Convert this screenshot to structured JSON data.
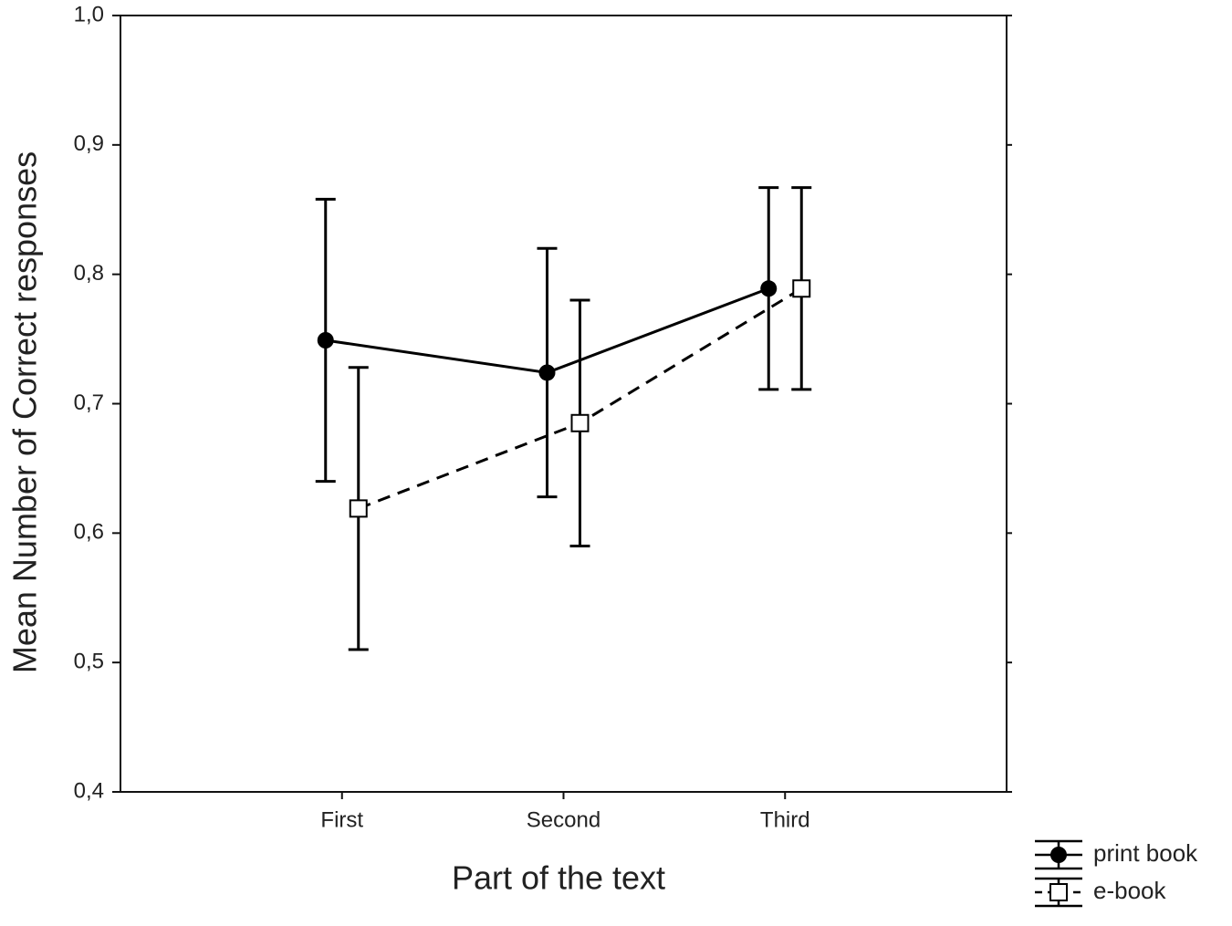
{
  "chart_data": {
    "type": "line",
    "xlabel": "Part of the text",
    "ylabel": "Mean Number of Correct responses",
    "categories": [
      "First",
      "Second",
      "Third"
    ],
    "ylim": [
      0.4,
      1.0
    ],
    "yticks": [
      {
        "value": 0.4,
        "label": "0,4"
      },
      {
        "value": 0.5,
        "label": "0,5"
      },
      {
        "value": 0.6,
        "label": "0,6"
      },
      {
        "value": 0.7,
        "label": "0,7"
      },
      {
        "value": 0.8,
        "label": "0,8"
      },
      {
        "value": 0.9,
        "label": "0,9"
      },
      {
        "value": 1.0,
        "label": "1,0"
      }
    ],
    "legend": "lower right",
    "series": [
      {
        "name": "print book",
        "color": "#000000",
        "line_style": "solid",
        "marker": "circle",
        "values": [
          0.749,
          0.724,
          0.789
        ],
        "errors": [
          0.109,
          0.096,
          0.078
        ]
      },
      {
        "name": "e-book",
        "color": "#000000",
        "line_style": "dashed",
        "marker": "square",
        "values": [
          0.619,
          0.685,
          0.789
        ],
        "errors": [
          0.109,
          0.095,
          0.078
        ]
      }
    ]
  }
}
